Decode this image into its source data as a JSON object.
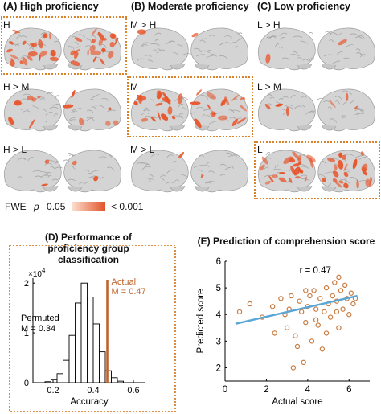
{
  "panels": {
    "A": {
      "title": "(A) High proficiency"
    },
    "B": {
      "title": "(B) Moderate proficiency"
    },
    "C": {
      "title": "(C) Low proficiency"
    }
  },
  "conditions": {
    "A": [
      "H",
      "H > M",
      "H > L"
    ],
    "B": [
      "M > H",
      "M",
      "M > L"
    ],
    "C": [
      "L > H",
      "L > M",
      "L"
    ]
  },
  "legend": {
    "prefix": "FWE",
    "p_symbol": "p",
    "low_value": "0.05",
    "high_value": "< 0.001",
    "color_low": "#fde0d0",
    "color_high": "#e0532a"
  },
  "colors": {
    "frame": "#d9822b",
    "activation": "#e8562c",
    "brain": "#d4d4d4",
    "actual_line": "#c0632a",
    "regression": "#5aa6d6",
    "scatter_point": "#c87a3f"
  },
  "chart_data": [
    {
      "type": "bar",
      "title": "(D) Performance of proficiency group classification",
      "title_lines": [
        "(D) Performance of",
        "proficiency group classification"
      ],
      "xlabel": "Accuracy",
      "ylabel": "",
      "y_multiplier": "× 10^4",
      "y_multiplier_text": "×10",
      "y_multiplier_exp": "4",
      "xlim": [
        0.1,
        0.66
      ],
      "ylim": [
        0,
        2.1
      ],
      "xticks": [
        "0.2",
        "0.4",
        "0.6"
      ],
      "xtick_values": [
        0.2,
        0.4,
        0.6
      ],
      "yticks": [
        "0",
        "1",
        "2"
      ],
      "ytick_values": [
        0,
        1,
        2
      ],
      "bins": [
        {
          "x0": 0.16,
          "x1": 0.19,
          "value": 0.02
        },
        {
          "x0": 0.19,
          "x1": 0.22,
          "value": 0.06
        },
        {
          "x0": 0.22,
          "x1": 0.25,
          "value": 0.18
        },
        {
          "x0": 0.25,
          "x1": 0.28,
          "value": 0.45
        },
        {
          "x0": 0.28,
          "x1": 0.31,
          "value": 0.95
        },
        {
          "x0": 0.31,
          "x1": 0.34,
          "value": 1.6
        },
        {
          "x0": 0.34,
          "x1": 0.37,
          "value": 2.0
        },
        {
          "x0": 0.37,
          "x1": 0.4,
          "value": 1.72
        },
        {
          "x0": 0.4,
          "x1": 0.43,
          "value": 1.18
        },
        {
          "x0": 0.43,
          "x1": 0.46,
          "value": 0.62
        },
        {
          "x0": 0.46,
          "x1": 0.49,
          "value": 0.24
        },
        {
          "x0": 0.49,
          "x1": 0.52,
          "value": 0.1
        },
        {
          "x0": 0.52,
          "x1": 0.55,
          "value": 0.03
        }
      ],
      "actual": {
        "label": "Actual",
        "m_label": "M = 0.47",
        "value": 0.47
      },
      "permuted": {
        "label": "Permuted",
        "m_label": "M = 0.34"
      }
    },
    {
      "type": "scatter",
      "title": "(E) Prediction of comprehension score",
      "xlabel": "Actual score",
      "ylabel": "Predicted score",
      "xlim": [
        0,
        7
      ],
      "ylim": [
        1.5,
        6
      ],
      "xticks": [
        "0",
        "2",
        "4",
        "6"
      ],
      "xtick_values": [
        0,
        2,
        4,
        6
      ],
      "yticks": [
        "2",
        "3",
        "4",
        "5",
        "6"
      ],
      "ytick_values": [
        2,
        3,
        4,
        5,
        6
      ],
      "annotation": "r = 0.47",
      "fit": {
        "x": [
          0.5,
          6.4
        ],
        "y": [
          3.65,
          4.7
        ]
      },
      "points": [
        [
          0.7,
          4.1
        ],
        [
          1.2,
          4.4
        ],
        [
          1.8,
          3.9
        ],
        [
          2.3,
          4.3
        ],
        [
          2.7,
          4.6
        ],
        [
          2.9,
          4.0
        ],
        [
          3.0,
          3.5
        ],
        [
          3.1,
          4.2
        ],
        [
          3.2,
          4.7
        ],
        [
          3.4,
          3.2
        ],
        [
          3.5,
          2.8
        ],
        [
          3.6,
          4.5
        ],
        [
          3.7,
          4.1
        ],
        [
          3.8,
          2.2
        ],
        [
          3.9,
          3.7
        ],
        [
          4.0,
          4.3
        ],
        [
          4.1,
          4.7
        ],
        [
          4.2,
          3.0
        ],
        [
          4.3,
          4.9
        ],
        [
          4.4,
          4.2
        ],
        [
          4.5,
          3.6
        ],
        [
          4.6,
          4.6
        ],
        [
          4.7,
          2.7
        ],
        [
          4.8,
          4.1
        ],
        [
          4.9,
          5.0
        ],
        [
          5.0,
          4.4
        ],
        [
          5.1,
          3.9
        ],
        [
          5.2,
          4.7
        ],
        [
          5.3,
          5.2
        ],
        [
          5.4,
          4.5
        ],
        [
          5.5,
          5.4
        ],
        [
          5.5,
          3.5
        ],
        [
          5.6,
          4.9
        ],
        [
          5.7,
          4.2
        ],
        [
          5.8,
          5.1
        ],
        [
          5.9,
          4.6
        ],
        [
          6.0,
          4.0
        ],
        [
          6.1,
          4.8
        ],
        [
          6.2,
          4.4
        ],
        [
          6.3,
          4.6
        ],
        [
          3.3,
          2.0
        ],
        [
          4.9,
          3.3
        ],
        [
          2.4,
          3.3
        ],
        [
          3.9,
          4.9
        ],
        [
          4.4,
          3.8
        ],
        [
          5.4,
          4.1
        ]
      ]
    }
  ]
}
